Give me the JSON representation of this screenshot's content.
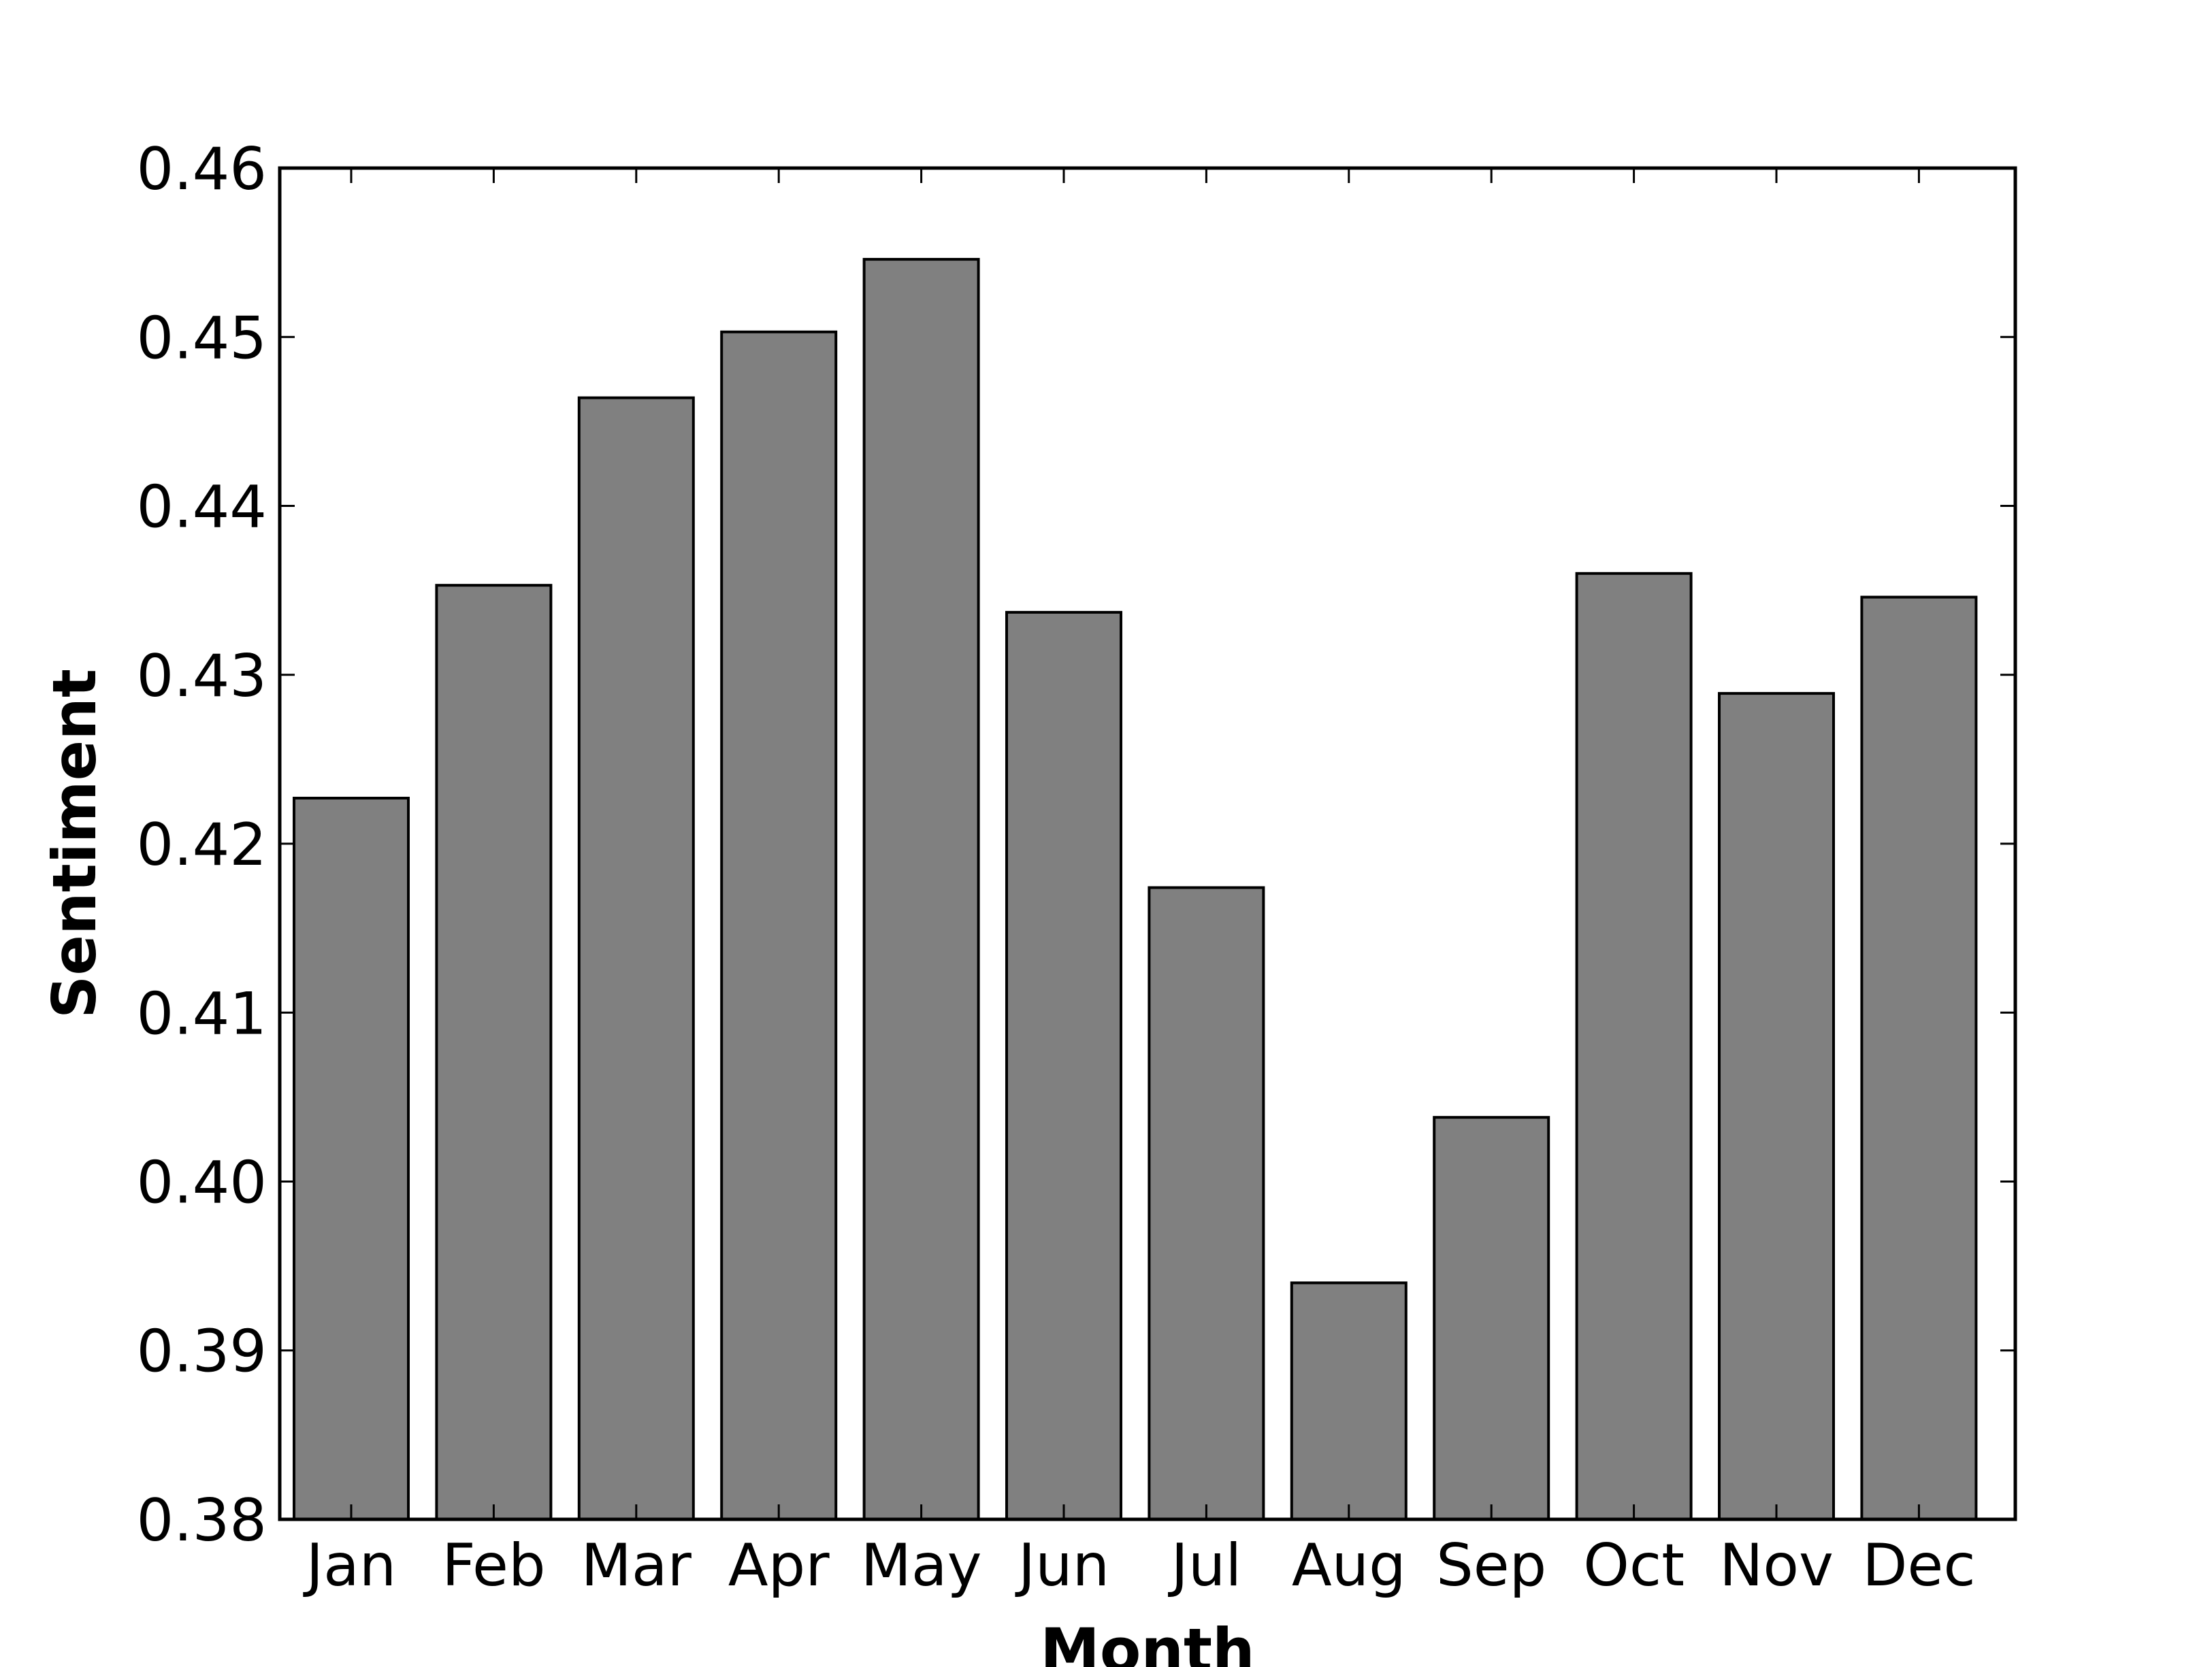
{
  "chart_data": {
    "type": "bar",
    "title": "",
    "xlabel": "Month",
    "ylabel": "Sentiment",
    "categories": [
      "Jan",
      "Feb",
      "Mar",
      "Apr",
      "May",
      "Jun",
      "Jul",
      "Aug",
      "Sep",
      "Oct",
      "Nov",
      "Dec"
    ],
    "values": [
      0.4227,
      0.4353,
      0.4464,
      0.4503,
      0.4546,
      0.4337,
      0.4174,
      0.394,
      0.4038,
      0.436,
      0.4289,
      0.4346
    ],
    "ylim": [
      0.38,
      0.46
    ],
    "yticks": [
      "0.38",
      "0.39",
      "0.40",
      "0.41",
      "0.42",
      "0.43",
      "0.44",
      "0.45",
      "0.46"
    ],
    "bar_color": "#808080",
    "edge_color": "#000000",
    "grid": false,
    "legend": "none"
  }
}
